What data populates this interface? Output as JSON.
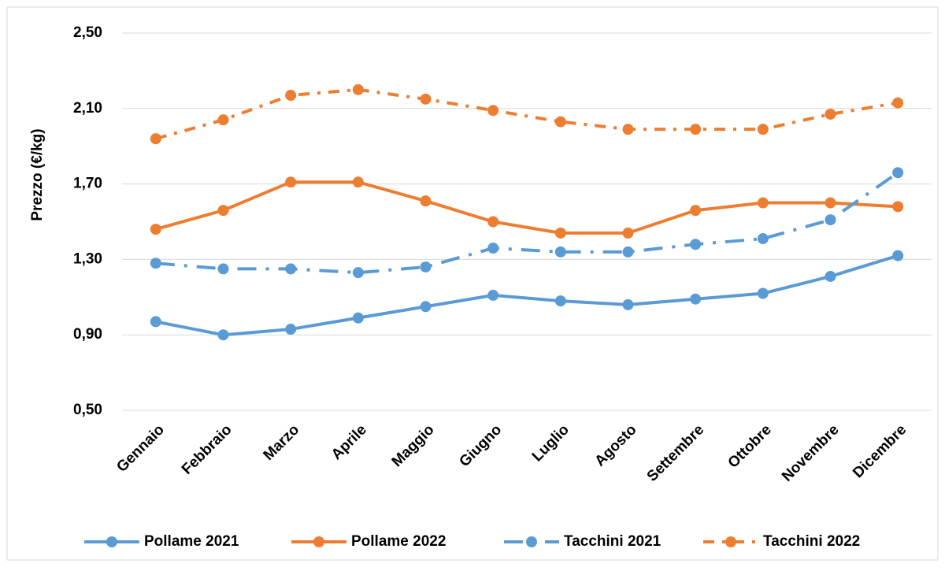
{
  "chart_data": {
    "type": "line",
    "y_label": "Prezzo (€/kg)",
    "categories": [
      "Gennaio",
      "Febbraio",
      "Marzo",
      "Aprile",
      "Maggio",
      "Giugno",
      "Luglio",
      "Agosto",
      "Settembre",
      "Ottobre",
      "Novembre",
      "Dicembre"
    ],
    "series": [
      {
        "name": "Pollame 2021",
        "color": "#5b9bd5",
        "dash": "solid",
        "values": [
          0.97,
          0.9,
          0.93,
          0.99,
          1.05,
          1.11,
          1.08,
          1.06,
          1.09,
          1.12,
          1.21,
          1.32
        ]
      },
      {
        "name": "Pollame 2022",
        "color": "#ed7d31",
        "dash": "solid",
        "values": [
          1.46,
          1.56,
          1.71,
          1.71,
          1.61,
          1.5,
          1.44,
          1.44,
          1.56,
          1.6,
          1.6,
          1.58
        ]
      },
      {
        "name": "Tacchini 2021",
        "color": "#5b9bd5",
        "dash": "long-dash-dot",
        "values": [
          1.28,
          1.25,
          1.25,
          1.23,
          1.26,
          1.36,
          1.34,
          1.34,
          1.38,
          1.41,
          1.51,
          1.76
        ]
      },
      {
        "name": "Tacchini 2022",
        "color": "#ed7d31",
        "dash": "dash-dot",
        "values": [
          1.94,
          2.04,
          2.17,
          2.2,
          2.15,
          2.09,
          2.03,
          1.99,
          1.99,
          1.99,
          2.07,
          2.13
        ]
      }
    ],
    "ylim": [
      0.5,
      2.5
    ],
    "yticks": [
      {
        "value": 0.5,
        "label": "0,50"
      },
      {
        "value": 0.9,
        "label": "0,90"
      },
      {
        "value": 1.3,
        "label": "1,30"
      },
      {
        "value": 1.7,
        "label": "1,70"
      },
      {
        "value": 2.1,
        "label": "2,10"
      },
      {
        "value": 2.5,
        "label": "2,50"
      }
    ],
    "grid": true,
    "legend": "bottom"
  }
}
